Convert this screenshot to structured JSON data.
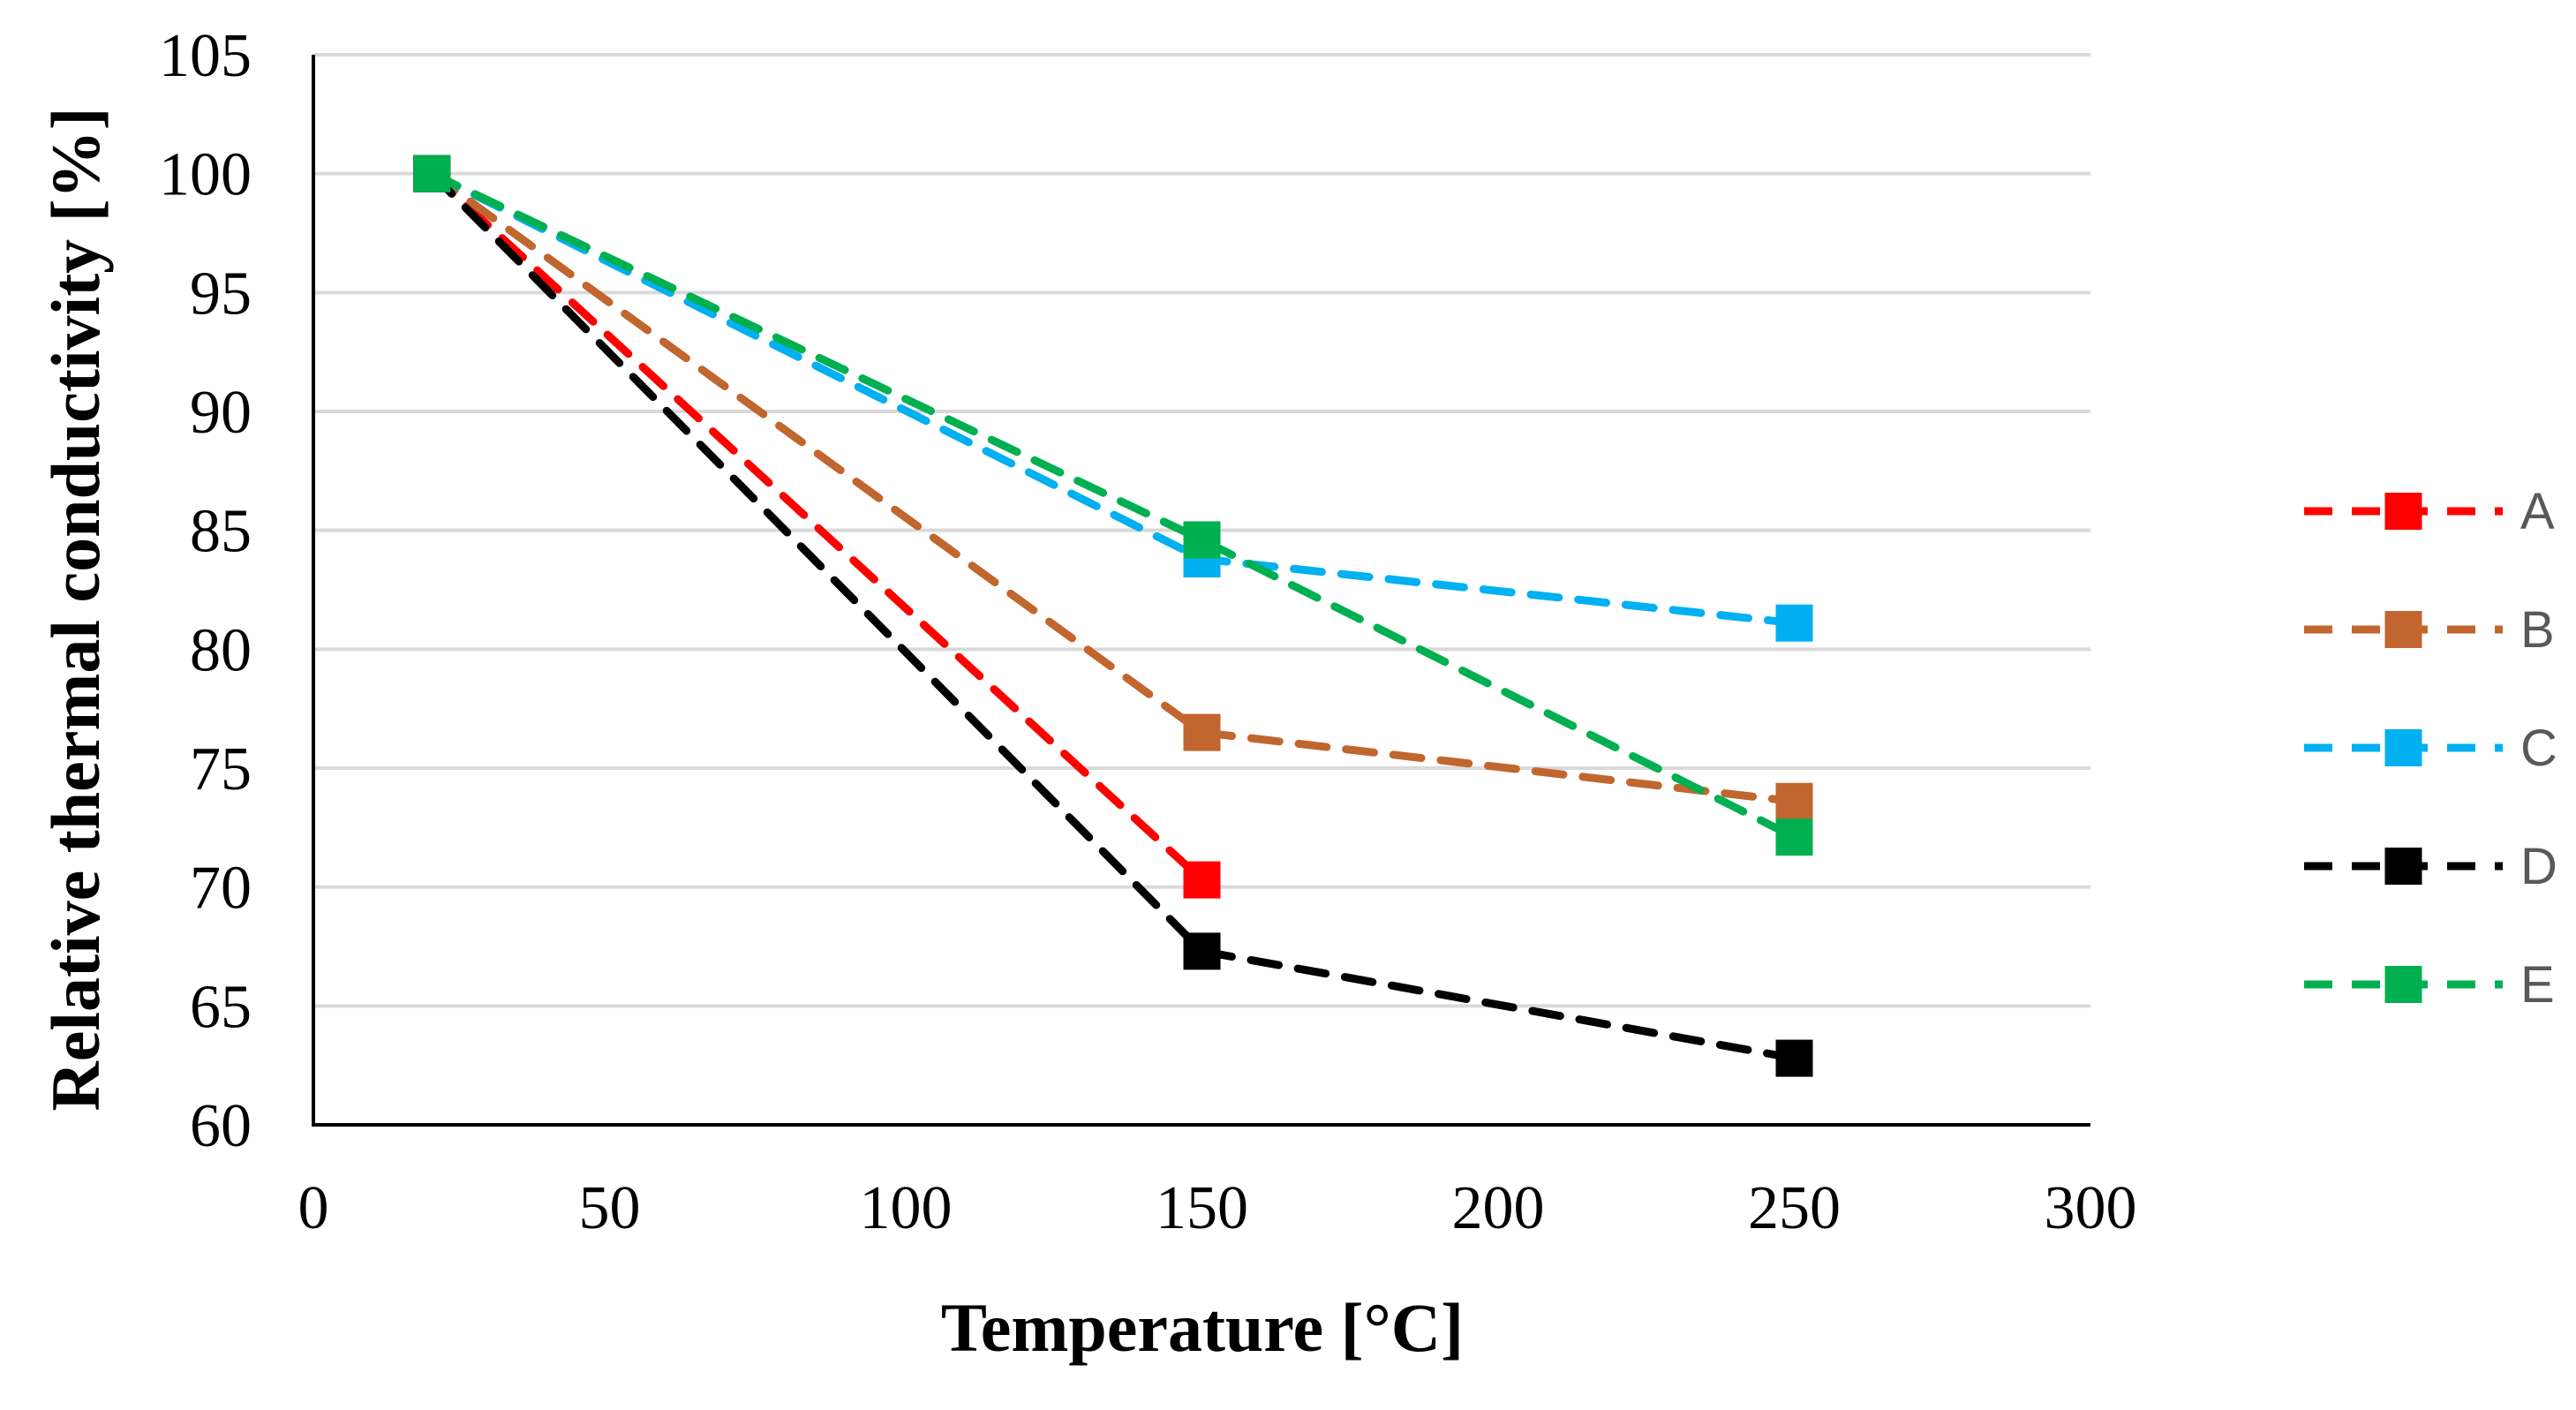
{
  "chart_data": {
    "type": "line",
    "title": "",
    "xlabel": "Temperature [°C]",
    "ylabel": "Relative thermal conductivity [%]",
    "xlim": [
      0,
      300
    ],
    "ylim": [
      60,
      105
    ],
    "xticks": [
      0,
      50,
      100,
      150,
      200,
      250,
      300
    ],
    "yticks": [
      60,
      65,
      70,
      75,
      80,
      85,
      90,
      95,
      100,
      105
    ],
    "xtick_labels": [
      "0",
      "50",
      "100",
      "150",
      "200",
      "250",
      "300"
    ],
    "ytick_labels": [
      "60",
      "65",
      "70",
      "75",
      "80",
      "85",
      "90",
      "95",
      "100",
      "105"
    ],
    "grid": "horizontal",
    "legend_position": "right",
    "line_style": "dashed",
    "marker": "square",
    "series": [
      {
        "name": "A",
        "color": "#FF0000",
        "x": [
          20,
          150
        ],
        "values": [
          100,
          70.3
        ]
      },
      {
        "name": "B",
        "color": "#C0662E",
        "x": [
          20,
          150,
          250
        ],
        "values": [
          100,
          76.5,
          73.6
        ]
      },
      {
        "name": "C",
        "color": "#00B0F0",
        "x": [
          20,
          150,
          250
        ],
        "values": [
          100,
          83.8,
          81.1
        ]
      },
      {
        "name": "D",
        "color": "#000000",
        "x": [
          20,
          150,
          250
        ],
        "values": [
          100,
          67.3,
          62.8
        ]
      },
      {
        "name": "E",
        "color": "#00B050",
        "x": [
          20,
          150,
          250
        ],
        "values": [
          100,
          84.6,
          72.1
        ]
      }
    ]
  }
}
